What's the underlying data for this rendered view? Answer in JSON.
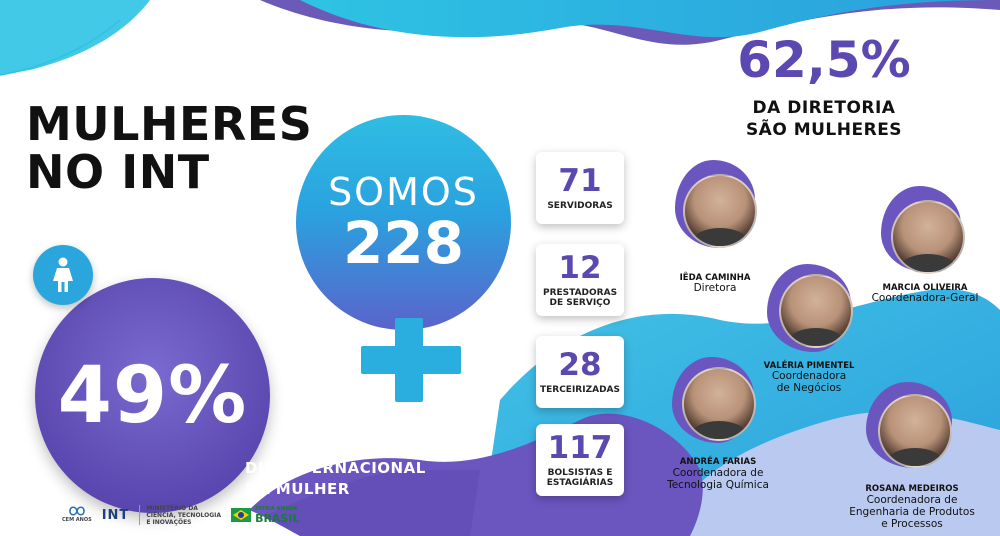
{
  "title": {
    "line1": "MULHERES",
    "line2": "NO INT"
  },
  "women_percentage": "49%",
  "international_day": {
    "line1": "DIA INTERNACIONAL",
    "line2": "DA MULHER"
  },
  "total": {
    "label": "SOMOS",
    "value": "228"
  },
  "stats": [
    {
      "value": "71",
      "label": "SERVIDORAS"
    },
    {
      "value": "12",
      "label": "PRESTADORAS DE SERVIÇO"
    },
    {
      "value": "28",
      "label": "TERCEIRIZADAS"
    },
    {
      "value": "117",
      "label": "BOLSISTAS E ESTAGIÁRIAS"
    }
  ],
  "directorate": {
    "value": "62,5%",
    "line1": "DA DIRETORIA",
    "line2": "SÃO MULHERES"
  },
  "people": [
    {
      "name": "IÊDA CAMINHA",
      "role_lines": [
        "Diretora"
      ]
    },
    {
      "name": "MARCIA OLIVEIRA",
      "role_lines": [
        "Coordenadora-Geral"
      ]
    },
    {
      "name": "VALÉRIA PIMENTEL",
      "role_lines": [
        "Coordenadora",
        "de Negócios"
      ]
    },
    {
      "name": "ANDRÉA FARIAS",
      "role_lines": [
        "Coordenadora de",
        "Tecnologia Química"
      ]
    },
    {
      "name": "ROSANA MEDEIROS",
      "role_lines": [
        "Coordenadora de",
        "Engenharia de Produtos",
        "e Processos"
      ]
    }
  ],
  "logos": {
    "cem_anos": "CEM ANOS",
    "int": "INT",
    "ministry_line1": "MINISTÉRIO DA",
    "ministry_line2": "CIÊNCIA, TECNOLOGIA",
    "ministry_line3": "E INOVAÇÕES",
    "patria": "PÁTRIA AMADA",
    "brasil": "BRASIL"
  },
  "colors": {
    "purple": "#5b48b0",
    "cyan": "#2aaee0",
    "light_blue": "#b9c9ef"
  }
}
